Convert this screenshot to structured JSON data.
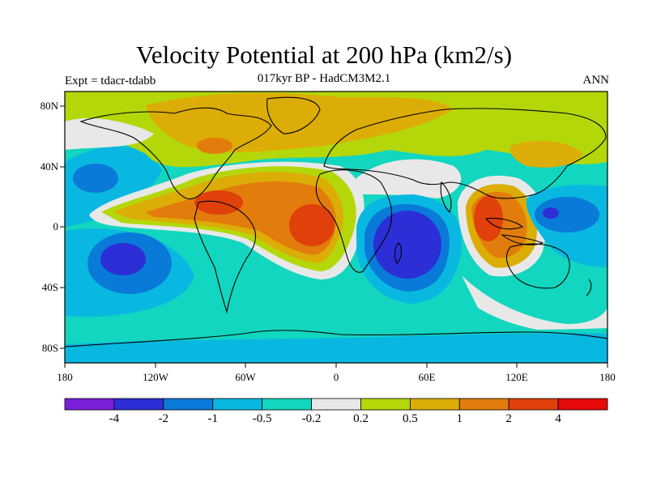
{
  "header": {
    "title": "Velocity Potential at 200 hPa (km2/s)",
    "subtitle": "017kyr BP - HadCM3M2.1",
    "left_label": "Expt = tdacr-tdabb",
    "right_label": "ANN"
  },
  "axes": {
    "lat_labels": [
      "80N",
      "40N",
      "0",
      "40S",
      "80S"
    ],
    "lon_labels": [
      "180",
      "120W",
      "60W",
      "0",
      "60E",
      "120E",
      "180"
    ]
  },
  "colorbar": {
    "levels": [
      "-4",
      "-2",
      "-1",
      "-0.5",
      "-0.2",
      "0.2",
      "0.5",
      "1",
      "2",
      "4"
    ],
    "colors": [
      "#7a1fd8",
      "#2c2ed6",
      "#0a7ad8",
      "#09b8e0",
      "#12d6bf",
      "#e8e8e8",
      "#b4d70a",
      "#dcad06",
      "#e27c0c",
      "#e0400a",
      "#e60a0a"
    ]
  },
  "map_colors": {
    "ocean_base": "#12d6bf",
    "land_outline": "#000000",
    "frame": "#000000"
  }
}
